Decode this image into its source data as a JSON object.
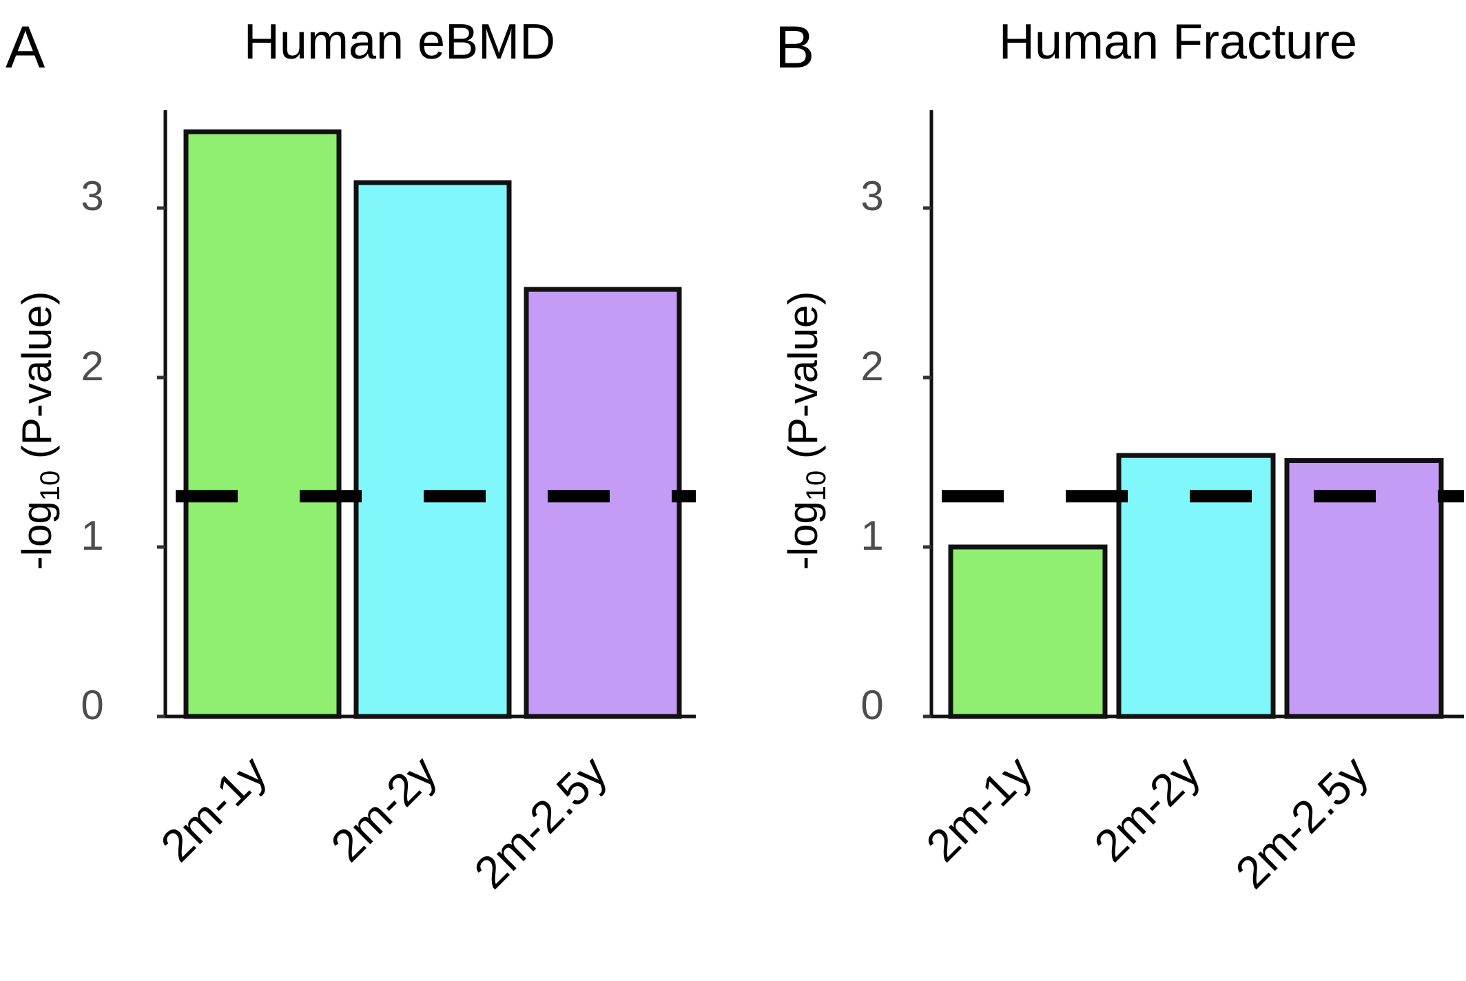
{
  "chart_data": [
    {
      "panel": "A",
      "type": "bar",
      "title": "Human eBMD",
      "ylabel": "-log10 (P-value)",
      "ylabel_main": "-log",
      "ylabel_sub": "10",
      "ylabel_rest": " (P-value)",
      "categories": [
        "2m-1y",
        "2m-2y",
        "2m-2.5y"
      ],
      "values": [
        3.45,
        3.15,
        2.52
      ],
      "colors": [
        "#90ee70",
        "#80f8fb",
        "#c49cf5"
      ],
      "threshold": 1.3,
      "ylim": [
        0,
        3.55
      ],
      "yticks": [
        "0",
        "1",
        "2",
        "3"
      ],
      "grid": false
    },
    {
      "panel": "B",
      "type": "bar",
      "title": "Human Fracture",
      "ylabel": "-log10 (P-value)",
      "ylabel_main": "-log",
      "ylabel_sub": "10",
      "ylabel_rest": " (P-value)",
      "categories": [
        "2m-1y",
        "2m-2y",
        "2m-2.5y"
      ],
      "values": [
        1.0,
        1.54,
        1.51
      ],
      "colors": [
        "#90ee70",
        "#80f8fb",
        "#c49cf5"
      ],
      "threshold": 1.3,
      "ylim": [
        0,
        3.55
      ],
      "yticks": [
        "0",
        "1",
        "2",
        "3"
      ],
      "grid": false
    }
  ]
}
